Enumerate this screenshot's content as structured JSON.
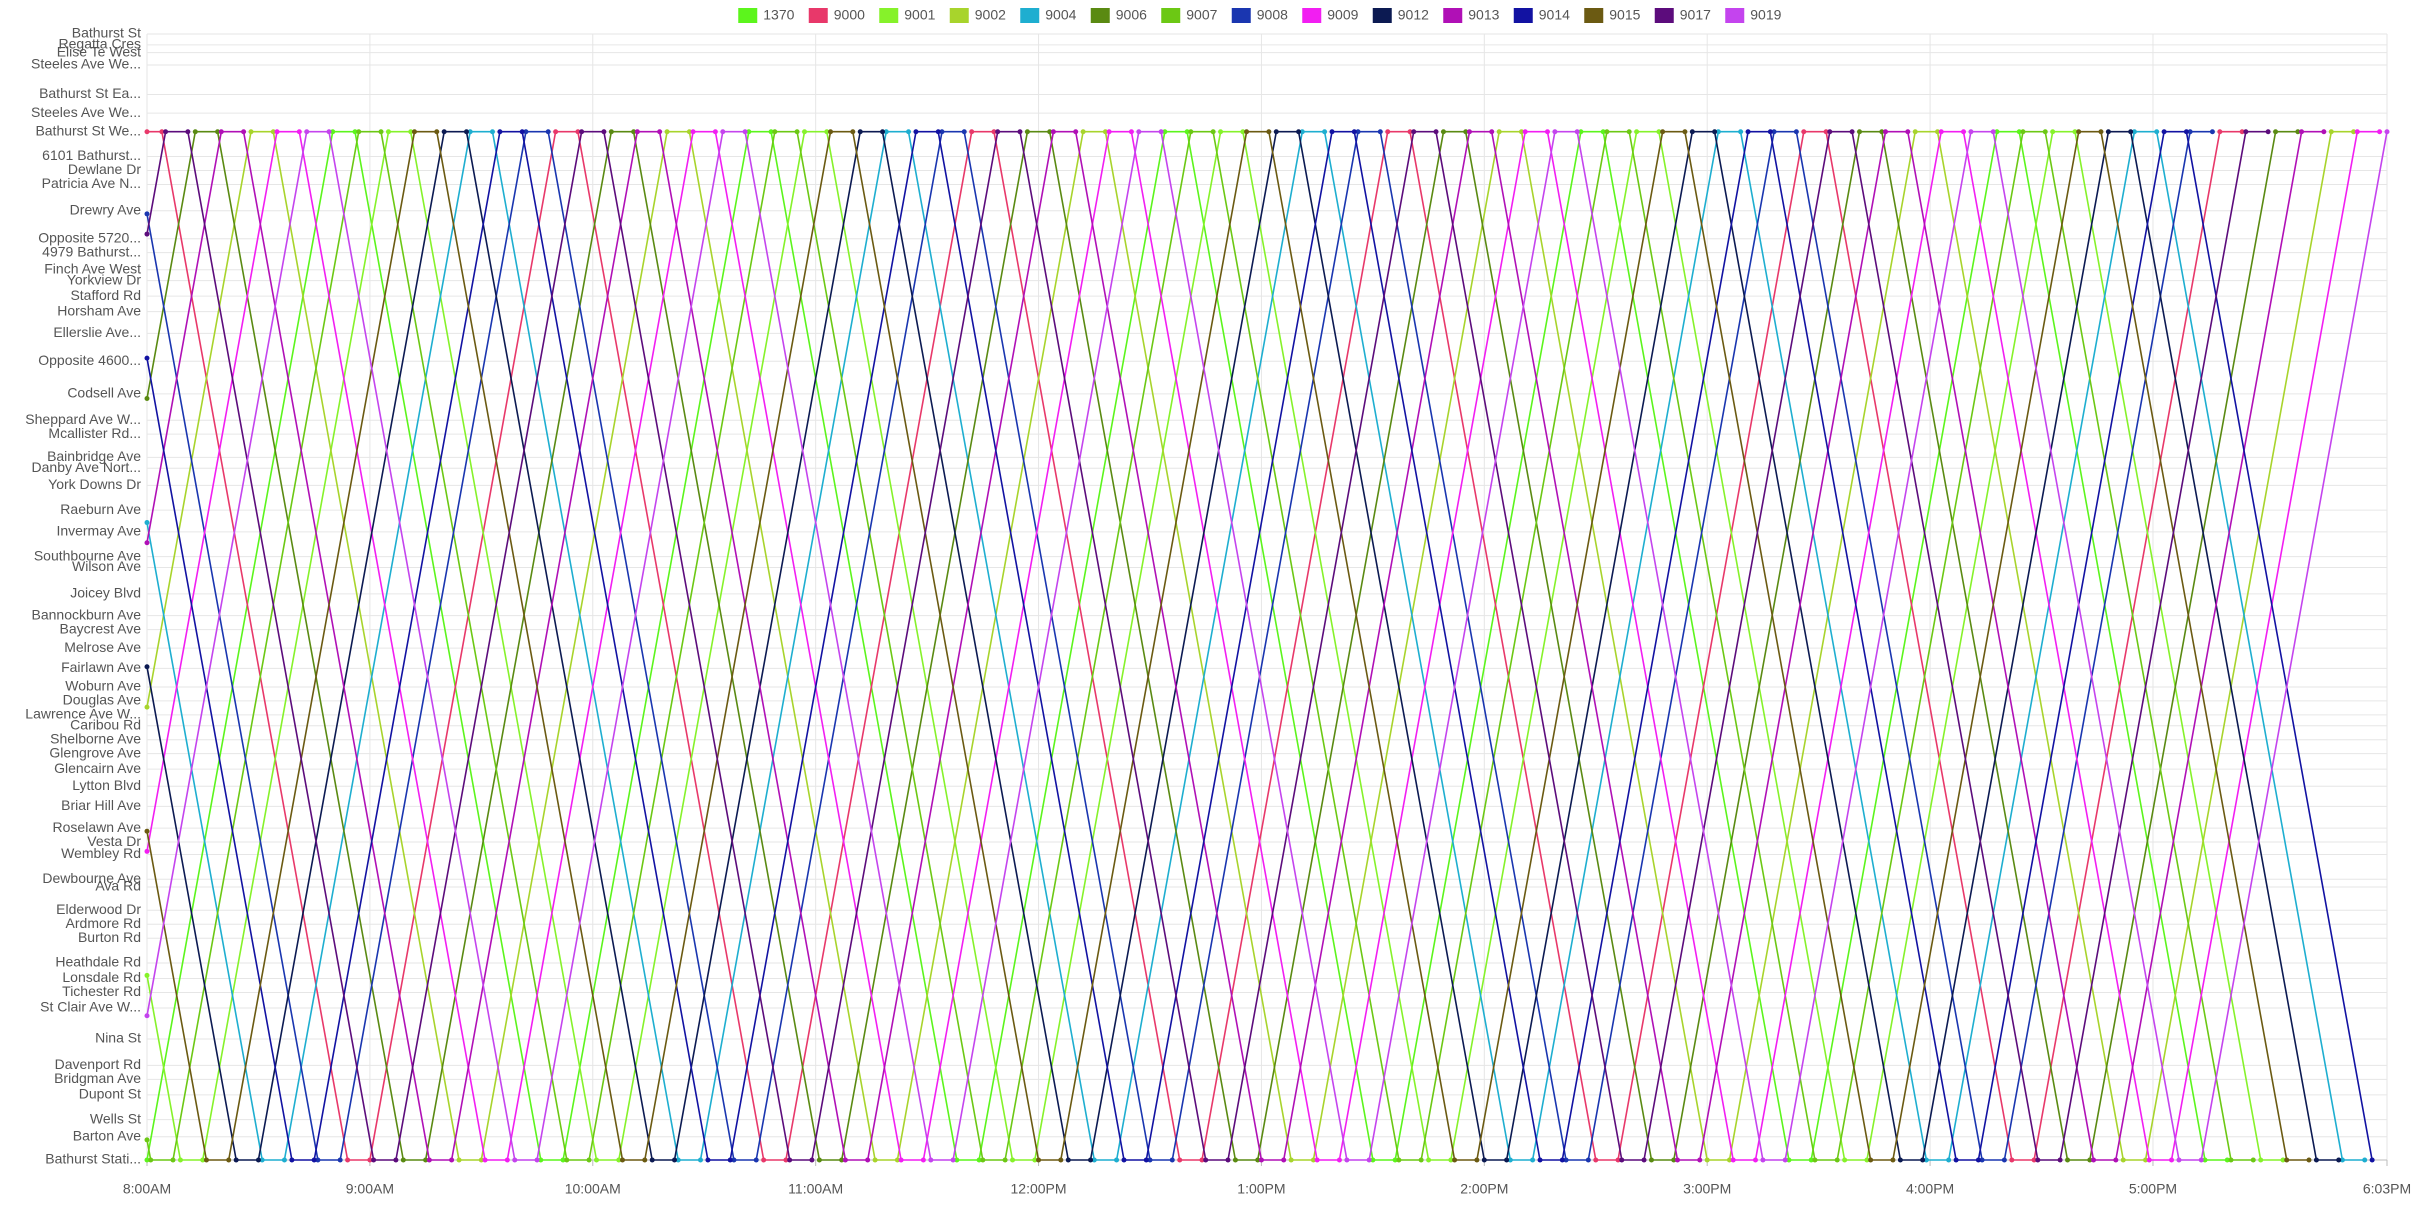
{
  "chart_data": {
    "type": "line",
    "legend": "top",
    "grid": true,
    "xlim": [
      480,
      1083
    ],
    "xticks": [
      {
        "value": 480,
        "label": "8:00AM"
      },
      {
        "value": 540,
        "label": "9:00AM"
      },
      {
        "value": 600,
        "label": "10:00AM"
      },
      {
        "value": 660,
        "label": "11:00AM"
      },
      {
        "value": 720,
        "label": "12:00PM"
      },
      {
        "value": 780,
        "label": "1:00PM"
      },
      {
        "value": 840,
        "label": "2:00PM"
      },
      {
        "value": 900,
        "label": "3:00PM"
      },
      {
        "value": 960,
        "label": "4:00PM"
      },
      {
        "value": 1020,
        "label": "5:00PM"
      },
      {
        "value": 1083,
        "label": "6:03PM"
      }
    ],
    "ylim": [
      0,
      726
    ],
    "yticks": [
      {
        "value": 726,
        "label": "Bathurst St"
      },
      {
        "value": 719,
        "label": "Regatta Cres"
      },
      {
        "value": 714,
        "label": "Elise Te West"
      },
      {
        "value": 706,
        "label": "Steeles Ave We..."
      },
      {
        "value": 687,
        "label": "Bathurst St Ea..."
      },
      {
        "value": 675,
        "label": "Steeles Ave We..."
      },
      {
        "value": 663,
        "label": "Bathurst St We..."
      },
      {
        "value": 647,
        "label": "6101 Bathurst..."
      },
      {
        "value": 638,
        "label": "Dewlane Dr"
      },
      {
        "value": 629,
        "label": "Patricia Ave N..."
      },
      {
        "value": 612,
        "label": "Drewry Ave"
      },
      {
        "value": 594,
        "label": "Opposite 5720..."
      },
      {
        "value": 585,
        "label": "4979 Bathurst..."
      },
      {
        "value": 574,
        "label": "Finch Ave West"
      },
      {
        "value": 567,
        "label": "Yorkview Dr"
      },
      {
        "value": 557,
        "label": "Stafford Rd"
      },
      {
        "value": 547,
        "label": "Horsham Ave"
      },
      {
        "value": 533,
        "label": "Ellerslie Ave..."
      },
      {
        "value": 515,
        "label": "Opposite 4600..."
      },
      {
        "value": 494,
        "label": "Codsell Ave"
      },
      {
        "value": 477,
        "label": "Sheppard Ave W..."
      },
      {
        "value": 468,
        "label": "Mcallister Rd..."
      },
      {
        "value": 453,
        "label": "Bainbridge Ave"
      },
      {
        "value": 446,
        "label": "Danby Ave Nort..."
      },
      {
        "value": 435,
        "label": "York Downs Dr"
      },
      {
        "value": 419,
        "label": "Raeburn Ave"
      },
      {
        "value": 405,
        "label": "Invermay Ave"
      },
      {
        "value": 389,
        "label": "Southbourne Ave"
      },
      {
        "value": 382,
        "label": "Wilson Ave"
      },
      {
        "value": 365,
        "label": "Joicey Blvd"
      },
      {
        "value": 351,
        "label": "Bannockburn Ave"
      },
      {
        "value": 342,
        "label": "Baycrest Ave"
      },
      {
        "value": 330,
        "label": "Melrose Ave"
      },
      {
        "value": 317,
        "label": "Fairlawn Ave"
      },
      {
        "value": 305,
        "label": "Woburn Ave"
      },
      {
        "value": 296,
        "label": "Douglas Ave"
      },
      {
        "value": 287,
        "label": "Lawrence Ave W..."
      },
      {
        "value": 280,
        "label": "Caribou Rd"
      },
      {
        "value": 271,
        "label": "Shelborne Ave"
      },
      {
        "value": 262,
        "label": "Glengrove Ave"
      },
      {
        "value": 252,
        "label": "Glencairn Ave"
      },
      {
        "value": 241,
        "label": "Lytton Blvd"
      },
      {
        "value": 228,
        "label": "Briar Hill Ave"
      },
      {
        "value": 214,
        "label": "Roselawn Ave"
      },
      {
        "value": 205,
        "label": "Vesta Dr"
      },
      {
        "value": 197,
        "label": "Wembley Rd"
      },
      {
        "value": 181,
        "label": "Dewbourne Ave"
      },
      {
        "value": 176,
        "label": "Ava Rd"
      },
      {
        "value": 161,
        "label": "Elderwood Dr"
      },
      {
        "value": 152,
        "label": "Ardmore Rd"
      },
      {
        "value": 143,
        "label": "Burton Rd"
      },
      {
        "value": 127,
        "label": "Heathdale Rd"
      },
      {
        "value": 117,
        "label": "Lonsdale Rd"
      },
      {
        "value": 108,
        "label": "Tichester Rd"
      },
      {
        "value": 98,
        "label": "St Clair Ave W..."
      },
      {
        "value": 78,
        "label": "Nina St"
      },
      {
        "value": 61,
        "label": "Davenport Rd"
      },
      {
        "value": 52,
        "label": "Bridgman Ave"
      },
      {
        "value": 42,
        "label": "Dupont St"
      },
      {
        "value": 26,
        "label": "Wells St"
      },
      {
        "value": 15,
        "label": "Barton Ave"
      },
      {
        "value": 0,
        "label": "Bathurst Stati..."
      }
    ],
    "series": [
      {
        "name": "1370",
        "color": "#5cf51c",
        "x": [
          480,
          530,
          536,
          586,
          592,
          642,
          648,
          698,
          704,
          754,
          760,
          810,
          816,
          866,
          872,
          922,
          928,
          978,
          984,
          1034,
          1040
        ],
        "values": [
          0,
          663,
          663,
          0,
          0,
          663,
          663,
          0,
          0,
          663,
          663,
          0,
          0,
          663,
          663,
          0,
          0,
          663,
          663,
          0,
          0
        ]
      },
      {
        "name": "9000",
        "color": "#e8386a",
        "x": [
          480,
          484,
          534,
          540,
          590,
          596,
          646,
          652,
          702,
          708,
          758,
          764,
          814,
          820,
          870,
          876,
          926,
          932,
          982,
          988,
          1038,
          1044
        ],
        "values": [
          663,
          663,
          0,
          0,
          663,
          663,
          0,
          0,
          663,
          663,
          0,
          0,
          663,
          663,
          0,
          0,
          663,
          663,
          0,
          0,
          663,
          663
        ]
      },
      {
        "name": "9001",
        "color": "#86f22a",
        "x": [
          480,
          489,
          495,
          545,
          551,
          601,
          607,
          657,
          663,
          713,
          719,
          769,
          775,
          825,
          831,
          881,
          887,
          937,
          943,
          993,
          999,
          1049,
          1055
        ],
        "values": [
          119,
          0,
          0,
          663,
          663,
          0,
          0,
          663,
          663,
          0,
          0,
          663,
          663,
          0,
          0,
          663,
          663,
          0,
          0,
          663,
          663,
          0,
          0
        ]
      },
      {
        "name": "9002",
        "color": "#a8d42c",
        "x": [
          480,
          508,
          514,
          564,
          570,
          620,
          626,
          676,
          682,
          732,
          738,
          788,
          794,
          844,
          850,
          900,
          906,
          956,
          962,
          1012,
          1018,
          1068,
          1074
        ],
        "values": [
          292,
          663,
          663,
          0,
          0,
          663,
          663,
          0,
          0,
          663,
          663,
          0,
          0,
          663,
          663,
          0,
          0,
          663,
          663,
          0,
          0,
          663,
          663
        ]
      },
      {
        "name": "9004",
        "color": "#1eaed0",
        "x": [
          480,
          511,
          517,
          567,
          573,
          623,
          629,
          679,
          685,
          735,
          741,
          791,
          797,
          847,
          853,
          903,
          909,
          959,
          965,
          1015,
          1021,
          1071,
          1077
        ],
        "values": [
          411,
          0,
          0,
          663,
          663,
          0,
          0,
          663,
          663,
          0,
          0,
          663,
          663,
          0,
          0,
          663,
          663,
          0,
          0,
          663,
          663,
          0,
          0
        ]
      },
      {
        "name": "9006",
        "color": "#5a8a12",
        "x": [
          480,
          493,
          499,
          549,
          555,
          605,
          611,
          661,
          667,
          717,
          723,
          773,
          779,
          829,
          835,
          885,
          891,
          941,
          947,
          997,
          1003,
          1053,
          1059
        ],
        "values": [
          491,
          663,
          663,
          0,
          0,
          663,
          663,
          0,
          0,
          663,
          663,
          0,
          0,
          663,
          663,
          0,
          0,
          663,
          663,
          0,
          0,
          663,
          663
        ]
      },
      {
        "name": "9007",
        "color": "#6cc814",
        "x": [
          480,
          481,
          487,
          537,
          543,
          593,
          599,
          649,
          655,
          705,
          711,
          761,
          767,
          817,
          823,
          873,
          879,
          929,
          935,
          985,
          991,
          1041,
          1047
        ],
        "values": [
          13,
          0,
          0,
          663,
          663,
          0,
          0,
          663,
          663,
          0,
          0,
          663,
          663,
          0,
          0,
          663,
          663,
          0,
          0,
          663,
          663,
          0,
          0
        ]
      },
      {
        "name": "9008",
        "color": "#1a36b0",
        "x": [
          480,
          526,
          532,
          582,
          588,
          638,
          644,
          694,
          700,
          750,
          756,
          806,
          812,
          862,
          868,
          918,
          924,
          974,
          980,
          1030,
          1036
        ],
        "values": [
          610,
          0,
          0,
          663,
          663,
          0,
          0,
          663,
          663,
          0,
          0,
          663,
          663,
          0,
          0,
          663,
          663,
          0,
          0,
          663,
          663
        ]
      },
      {
        "name": "9009",
        "color": "#f21ef2",
        "x": [
          480,
          515,
          521,
          571,
          577,
          627,
          633,
          683,
          689,
          739,
          745,
          795,
          801,
          851,
          857,
          907,
          913,
          963,
          969,
          1019,
          1025,
          1075,
          1081
        ],
        "values": [
          199,
          663,
          663,
          0,
          0,
          663,
          663,
          0,
          0,
          663,
          663,
          0,
          0,
          663,
          663,
          0,
          0,
          663,
          663,
          0,
          0,
          663,
          663
        ]
      },
      {
        "name": "9012",
        "color": "#0c1a52",
        "x": [
          480,
          504,
          510,
          560,
          566,
          616,
          622,
          672,
          678,
          728,
          734,
          784,
          790,
          840,
          846,
          896,
          902,
          952,
          958,
          1008,
          1014,
          1064,
          1070
        ],
        "values": [
          318,
          0,
          0,
          663,
          663,
          0,
          0,
          663,
          663,
          0,
          0,
          663,
          663,
          0,
          0,
          663,
          663,
          0,
          0,
          663,
          663,
          0,
          0
        ]
      },
      {
        "name": "9013",
        "color": "#b010b6",
        "x": [
          480,
          500,
          506,
          556,
          562,
          612,
          618,
          668,
          674,
          724,
          730,
          780,
          786,
          836,
          842,
          892,
          898,
          948,
          954,
          1004,
          1010,
          1060,
          1066
        ],
        "values": [
          398,
          663,
          663,
          0,
          0,
          663,
          663,
          0,
          0,
          663,
          663,
          0,
          0,
          663,
          663,
          0,
          0,
          663,
          663,
          0,
          0,
          663,
          663
        ]
      },
      {
        "name": "9014",
        "color": "#1212a2",
        "x": [
          480,
          519,
          525,
          575,
          581,
          631,
          637,
          687,
          693,
          743,
          749,
          799,
          805,
          855,
          861,
          911,
          917,
          967,
          973,
          1023,
          1029,
          1079
        ],
        "values": [
          517,
          0,
          0,
          663,
          663,
          0,
          0,
          663,
          663,
          0,
          0,
          663,
          663,
          0,
          0,
          663,
          663,
          0,
          0,
          663,
          663,
          0
        ]
      },
      {
        "name": "9015",
        "color": "#6b5a12",
        "x": [
          480,
          496,
          502,
          552,
          558,
          608,
          614,
          664,
          670,
          720,
          726,
          776,
          782,
          832,
          838,
          888,
          894,
          944,
          950,
          1000,
          1006,
          1056,
          1062
        ],
        "values": [
          212,
          0,
          0,
          663,
          663,
          0,
          0,
          663,
          663,
          0,
          0,
          663,
          663,
          0,
          0,
          663,
          663,
          0,
          0,
          663,
          663,
          0,
          0
        ]
      },
      {
        "name": "9017",
        "color": "#5c0c7c",
        "x": [
          480,
          485,
          491,
          541,
          547,
          597,
          603,
          653,
          659,
          709,
          715,
          765,
          771,
          821,
          827,
          877,
          883,
          933,
          939,
          989,
          995,
          1045,
          1051
        ],
        "values": [
          597,
          663,
          663,
          0,
          0,
          663,
          663,
          0,
          0,
          663,
          663,
          0,
          0,
          663,
          663,
          0,
          0,
          663,
          663,
          0,
          0,
          663,
          663
        ]
      },
      {
        "name": "9019",
        "color": "#c444ee",
        "x": [
          480,
          523,
          529,
          579,
          585,
          635,
          641,
          691,
          697,
          747,
          753,
          803,
          809,
          859,
          865,
          915,
          921,
          971,
          977,
          1027,
          1033,
          1083
        ],
        "values": [
          93,
          663,
          663,
          0,
          0,
          663,
          663,
          0,
          0,
          663,
          663,
          0,
          0,
          663,
          663,
          0,
          0,
          663,
          663,
          0,
          0,
          663
        ]
      }
    ]
  }
}
